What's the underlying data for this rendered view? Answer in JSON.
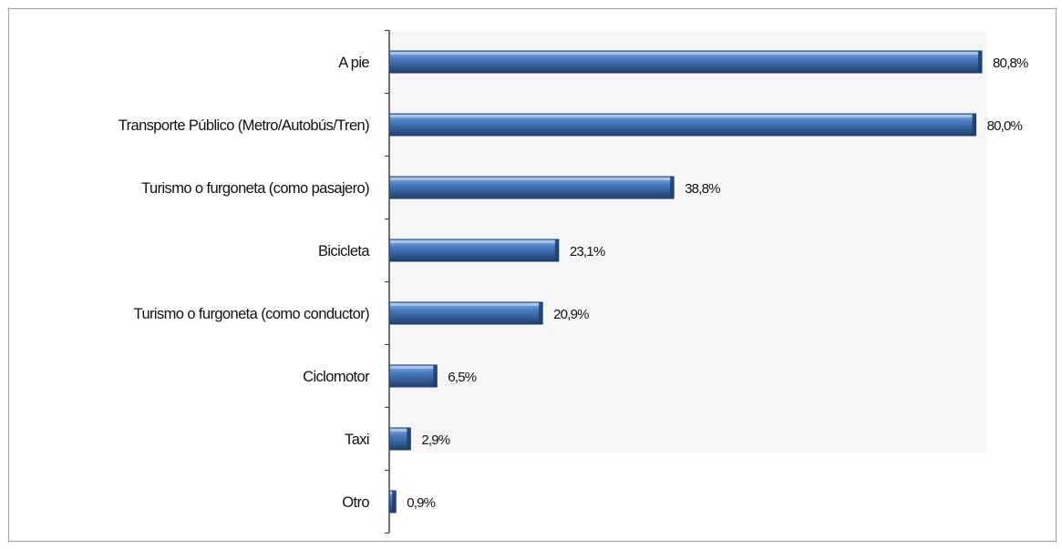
{
  "chart_data": {
    "type": "bar",
    "orientation": "horizontal",
    "categories": [
      "A pie",
      "Transporte Público (Metro/Autobús/Tren)",
      "Turismo o furgoneta (como pasajero)",
      "Bicicleta",
      "Turismo o furgoneta (como conductor)",
      "Ciclomotor",
      "Taxi",
      "Otro"
    ],
    "values": [
      80.8,
      80.0,
      38.8,
      23.1,
      20.9,
      6.5,
      2.9,
      0.9
    ],
    "value_labels": [
      "80,8%",
      "80,0%",
      "38,8%",
      "23,1%",
      "20,9%",
      "6,5%",
      "2,9%",
      "0,9%"
    ],
    "title": "",
    "xlabel": "",
    "ylabel": "",
    "xlim": [
      0,
      80.8
    ],
    "grid": false,
    "legend": "none",
    "colors": {
      "bar_main": "#4a7cc0",
      "bar_light": "#8fb3e2",
      "bar_dark": "#1f3f6e",
      "plot_background": "#f6f6f8",
      "axis": "#444444"
    }
  }
}
